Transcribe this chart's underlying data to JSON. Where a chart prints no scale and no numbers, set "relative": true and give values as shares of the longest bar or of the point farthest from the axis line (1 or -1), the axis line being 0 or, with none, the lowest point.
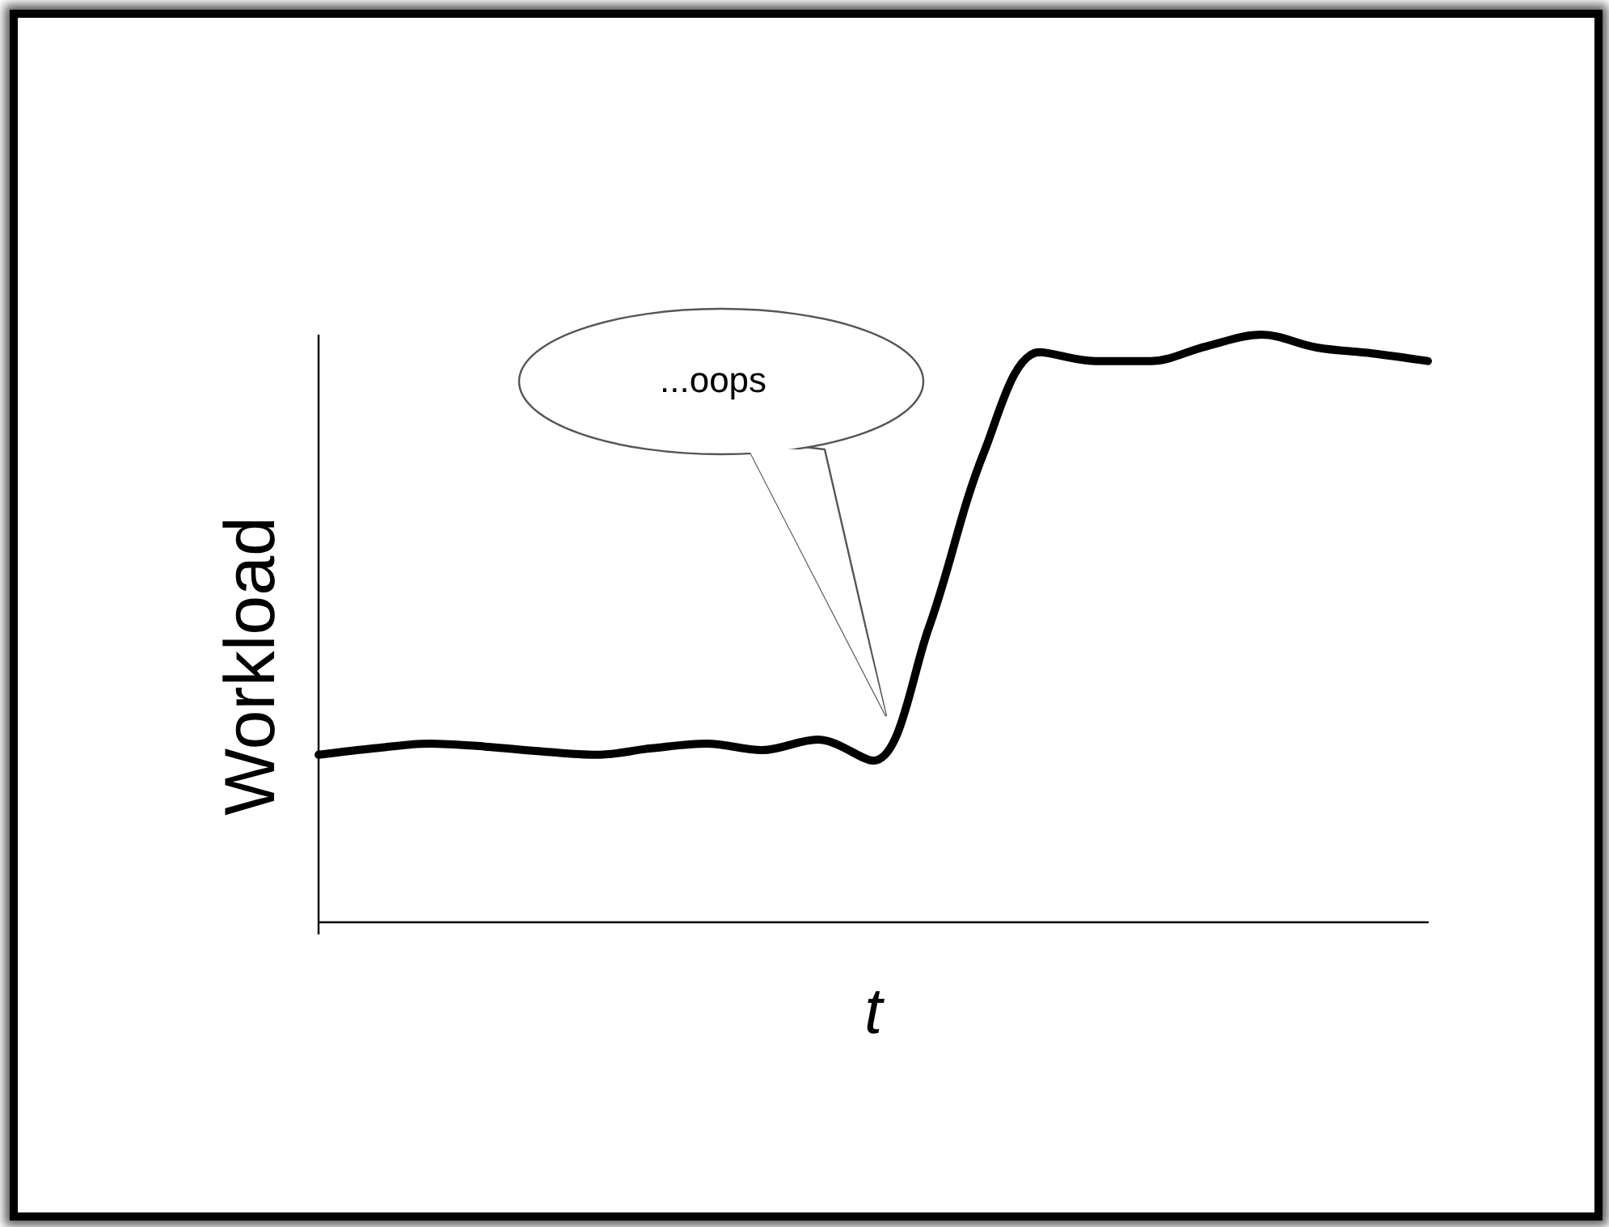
{
  "chart_data": {
    "type": "line",
    "xlabel": "t",
    "ylabel": "Workload",
    "relative": true,
    "marker": "none",
    "line_style": "solid",
    "annotations": [
      "...oops"
    ],
    "categories": [
      null,
      null,
      null,
      null,
      null,
      null,
      null,
      null,
      null,
      null,
      null,
      null,
      null,
      null,
      null,
      null,
      null,
      null,
      null,
      null,
      null
    ],
    "series": [
      {
        "color": "#000000",
        "values": [
          0.284,
          0.295,
          0.303,
          0.298,
          0.29,
          0.284,
          0.295,
          0.303,
          0.292,
          0.31,
          0.274,
          0.5,
          0.8,
          0.97,
          0.955,
          0.955,
          0.98,
          1,
          0.978,
          0.968,
          0.955
        ]
      }
    ]
  }
}
